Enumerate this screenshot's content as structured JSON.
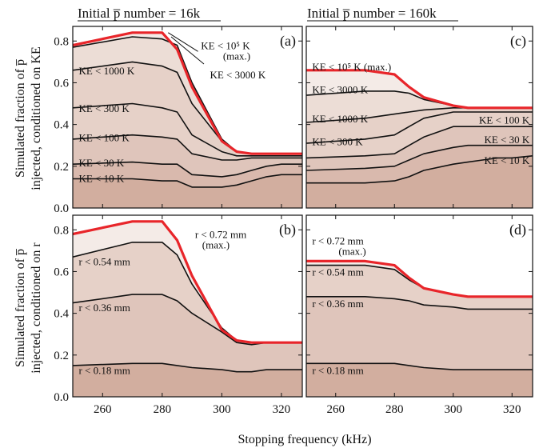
{
  "figure": {
    "col_titles": [
      "Initial p̅ number = 16k",
      "Initial p̅ number = 160k"
    ],
    "ylabel_top": [
      "Simulated fraction of p̅",
      "injected, conditioned on KE"
    ],
    "ylabel_bottom": [
      "Simulated fraction of p̅",
      "injected, conditioned on r"
    ],
    "xlabel": "Stopping frequency (kHz)",
    "colors": {
      "red": "#e8252a",
      "line": "#111111",
      "bands": [
        "#d2ae9f",
        "#d9b9ad",
        "#dfc5bb",
        "#e6d1c8",
        "#ecddd6",
        "#f4ebe7"
      ]
    }
  },
  "chart_data": [
    {
      "type": "area",
      "panel": "(a)",
      "xlim": [
        250,
        327
      ],
      "ylim": [
        0,
        0.87
      ],
      "xticks": [
        260,
        280,
        300,
        320
      ],
      "yticks": [
        0.0,
        0.2,
        0.4,
        0.6,
        0.8
      ],
      "x": [
        250,
        270,
        280,
        285,
        290,
        300,
        305,
        310,
        315,
        320,
        327
      ],
      "series": [
        {
          "name": "KE < 10 K",
          "values": [
            0.14,
            0.14,
            0.13,
            0.13,
            0.1,
            0.1,
            0.11,
            0.13,
            0.15,
            0.16,
            0.16
          ]
        },
        {
          "name": "KE < 30 K",
          "values": [
            0.21,
            0.22,
            0.21,
            0.21,
            0.16,
            0.15,
            0.16,
            0.18,
            0.2,
            0.21,
            0.21
          ]
        },
        {
          "name": "KE < 100 K",
          "values": [
            0.33,
            0.35,
            0.34,
            0.33,
            0.26,
            0.23,
            0.23,
            0.24,
            0.24,
            0.24,
            0.24
          ]
        },
        {
          "name": "KE < 300 K",
          "values": [
            0.48,
            0.5,
            0.48,
            0.46,
            0.35,
            0.27,
            0.25,
            0.25,
            0.25,
            0.25,
            0.25
          ]
        },
        {
          "name": "KE < 1000 K",
          "values": [
            0.66,
            0.7,
            0.68,
            0.65,
            0.5,
            0.32,
            0.27,
            0.26,
            0.26,
            0.26,
            0.26
          ]
        },
        {
          "name": "KE < 3000 K",
          "values": [
            0.77,
            0.82,
            0.81,
            0.78,
            0.6,
            0.33,
            0.27,
            0.26,
            0.26,
            0.26,
            0.26
          ]
        },
        {
          "name": "KE < 10⁵ K (max.)",
          "values": [
            0.78,
            0.84,
            0.84,
            0.76,
            0.58,
            0.32,
            0.27,
            0.26,
            0.26,
            0.26,
            0.26
          ]
        }
      ],
      "labels": [
        "KE < 10 K",
        "KE < 30 K",
        "KE < 100 K",
        "KE < 300 K",
        "KE < 1000 K"
      ],
      "callouts": [
        "KE < 10⁵ K",
        "(max.)",
        "KE < 3000 K"
      ]
    },
    {
      "type": "area",
      "panel": "(c)",
      "xlim": [
        250,
        327
      ],
      "ylim": [
        0,
        0.87
      ],
      "xticks": [
        260,
        280,
        300,
        320
      ],
      "yticks": [
        0.0,
        0.2,
        0.4,
        0.6,
        0.8
      ],
      "x": [
        250,
        270,
        280,
        285,
        290,
        300,
        305,
        310,
        315,
        320,
        327
      ],
      "series": [
        {
          "name": "KE < 10 K",
          "values": [
            0.12,
            0.12,
            0.13,
            0.15,
            0.18,
            0.21,
            0.22,
            0.23,
            0.24,
            0.24,
            0.25
          ]
        },
        {
          "name": "KE < 30 K",
          "values": [
            0.18,
            0.19,
            0.2,
            0.23,
            0.26,
            0.29,
            0.3,
            0.3,
            0.3,
            0.3,
            0.3
          ]
        },
        {
          "name": "KE < 100 K",
          "values": [
            0.24,
            0.25,
            0.26,
            0.3,
            0.34,
            0.39,
            0.39,
            0.39,
            0.39,
            0.39,
            0.39
          ]
        },
        {
          "name": "KE < 300 K",
          "values": [
            0.31,
            0.33,
            0.35,
            0.39,
            0.43,
            0.46,
            0.46,
            0.46,
            0.46,
            0.46,
            0.46
          ]
        },
        {
          "name": "KE < 1000 K",
          "values": [
            0.41,
            0.43,
            0.45,
            0.46,
            0.47,
            0.48,
            0.48,
            0.48,
            0.48,
            0.48,
            0.48
          ]
        },
        {
          "name": "KE < 3000 K",
          "values": [
            0.54,
            0.56,
            0.56,
            0.55,
            0.52,
            0.49,
            0.48,
            0.48,
            0.48,
            0.48,
            0.48
          ]
        },
        {
          "name": "KE < 10⁵ K (max.)",
          "values": [
            0.66,
            0.66,
            0.64,
            0.58,
            0.53,
            0.49,
            0.48,
            0.48,
            0.48,
            0.48,
            0.48
          ]
        }
      ],
      "labels": [
        "KE < 10⁵ K (max.)",
        "KE < 3000 K",
        "KE < 1000 K",
        "KE < 300 K",
        "KE < 100 K",
        "KE < 30 K",
        "KE < 10 K"
      ]
    },
    {
      "type": "area",
      "panel": "(b)",
      "xlim": [
        250,
        327
      ],
      "ylim": [
        0,
        0.87
      ],
      "xticks": [
        260,
        280,
        300,
        320
      ],
      "yticks": [
        0.0,
        0.2,
        0.4,
        0.6,
        0.8
      ],
      "x": [
        250,
        270,
        280,
        285,
        290,
        300,
        305,
        310,
        315,
        320,
        327
      ],
      "series": [
        {
          "name": "r < 0.18 mm",
          "values": [
            0.15,
            0.16,
            0.16,
            0.15,
            0.14,
            0.13,
            0.12,
            0.12,
            0.13,
            0.13,
            0.13
          ]
        },
        {
          "name": "r < 0.36 mm",
          "values": [
            0.45,
            0.49,
            0.49,
            0.46,
            0.4,
            0.31,
            0.26,
            0.25,
            0.26,
            0.26,
            0.26
          ]
        },
        {
          "name": "r < 0.54 mm",
          "values": [
            0.67,
            0.74,
            0.74,
            0.68,
            0.54,
            0.33,
            0.27,
            0.26,
            0.26,
            0.26,
            0.26
          ]
        },
        {
          "name": "r < 0.72 mm (max.)",
          "values": [
            0.78,
            0.84,
            0.84,
            0.75,
            0.58,
            0.32,
            0.27,
            0.26,
            0.26,
            0.26,
            0.26
          ]
        }
      ],
      "labels": [
        "r < 0.18 mm",
        "r < 0.36 mm",
        "r < 0.54 mm",
        "r < 0.72 mm",
        "(max.)"
      ]
    },
    {
      "type": "area",
      "panel": "(d)",
      "xlim": [
        250,
        327
      ],
      "ylim": [
        0,
        0.87
      ],
      "xticks": [
        260,
        280,
        300,
        320
      ],
      "yticks": [
        0.0,
        0.2,
        0.4,
        0.6,
        0.8
      ],
      "x": [
        250,
        270,
        280,
        285,
        290,
        300,
        305,
        310,
        315,
        320,
        327
      ],
      "series": [
        {
          "name": "r < 0.18 mm",
          "values": [
            0.16,
            0.16,
            0.16,
            0.15,
            0.14,
            0.13,
            0.13,
            0.13,
            0.13,
            0.13,
            0.13
          ]
        },
        {
          "name": "r < 0.36 mm",
          "values": [
            0.48,
            0.48,
            0.47,
            0.46,
            0.44,
            0.43,
            0.42,
            0.42,
            0.42,
            0.42,
            0.42
          ]
        },
        {
          "name": "r < 0.54 mm",
          "values": [
            0.63,
            0.63,
            0.61,
            0.56,
            0.52,
            0.49,
            0.48,
            0.48,
            0.48,
            0.48,
            0.48
          ]
        },
        {
          "name": "r < 0.72 mm (max.)",
          "values": [
            0.65,
            0.65,
            0.63,
            0.57,
            0.52,
            0.49,
            0.48,
            0.48,
            0.48,
            0.48,
            0.48
          ]
        }
      ],
      "labels": [
        "r < 0.72 mm",
        "(max.)",
        "r < 0.54 mm",
        "r < 0.36 mm",
        "r < 0.18 mm"
      ]
    }
  ]
}
